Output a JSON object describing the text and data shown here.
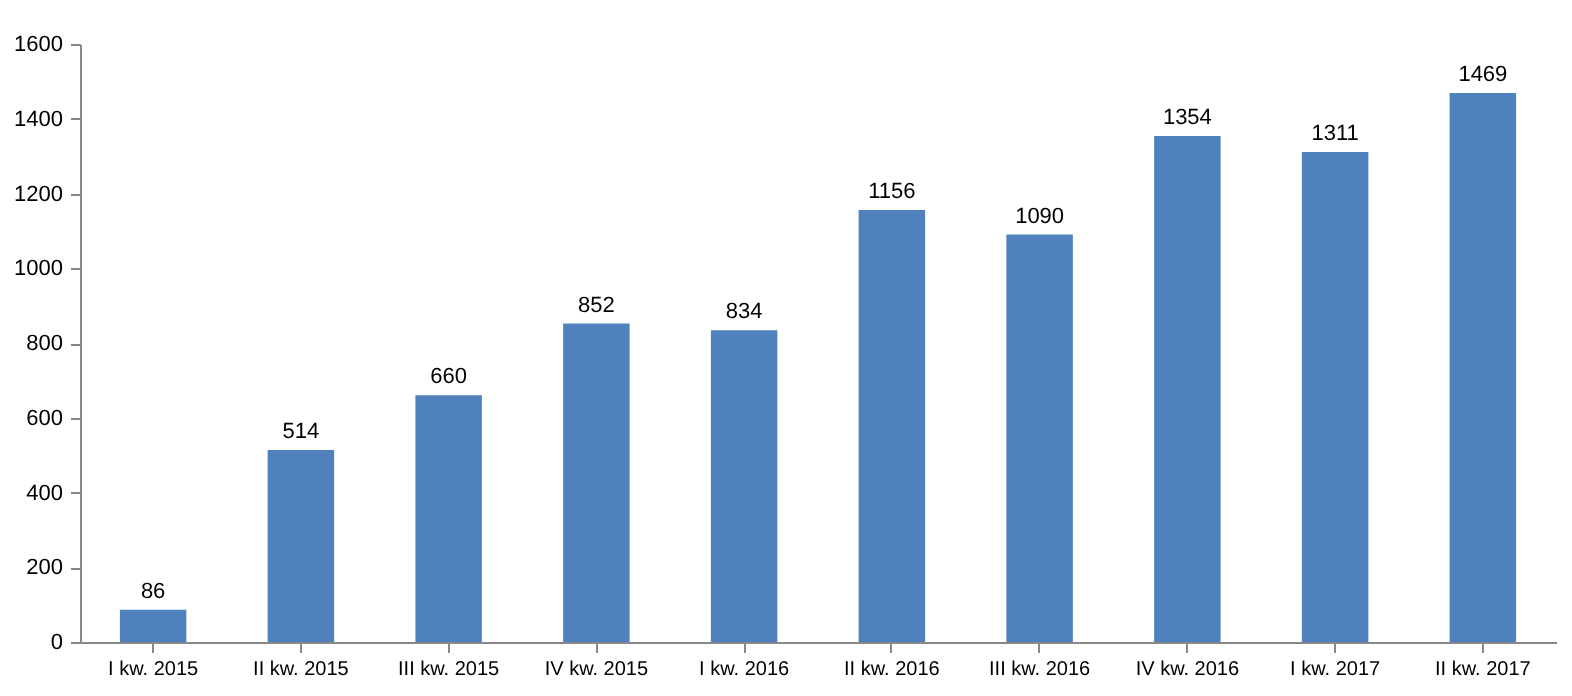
{
  "chart_data": {
    "type": "bar",
    "categories": [
      "I kw. 2015",
      "II kw. 2015",
      "III kw. 2015",
      "IV kw. 2015",
      "I kw. 2016",
      "II kw. 2016",
      "III kw. 2016",
      "IV kw. 2016",
      "I kw. 2017",
      "II kw. 2017"
    ],
    "values": [
      86,
      514,
      660,
      852,
      834,
      1156,
      1090,
      1354,
      1311,
      1469
    ],
    "color": "#4f81bd",
    "ylim": [
      0,
      1600
    ],
    "yticks": [
      0,
      200,
      400,
      600,
      800,
      1000,
      1200,
      1400,
      1600
    ],
    "grid": false,
    "data_labels": true
  }
}
